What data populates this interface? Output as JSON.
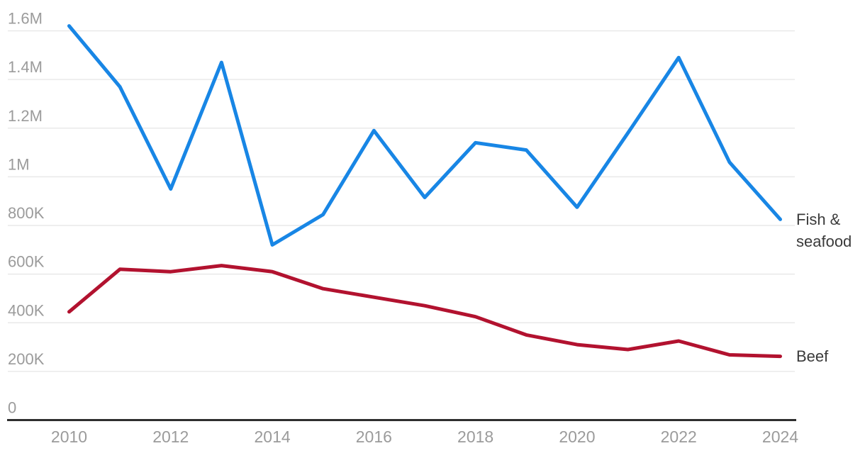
{
  "chart_data": {
    "type": "line",
    "title": "",
    "xlabel": "",
    "ylabel": "",
    "grid": true,
    "legend_position": "end-of-line-labels",
    "x": [
      2010,
      2011,
      2012,
      2013,
      2014,
      2015,
      2016,
      2017,
      2018,
      2019,
      2020,
      2021,
      2022,
      2023,
      2024
    ],
    "series": [
      {
        "name": "Fish & seafood",
        "color": "#1886e5",
        "values": [
          1620000,
          1370000,
          950000,
          1470000,
          720000,
          845000,
          1190000,
          915000,
          1140000,
          1110000,
          875000,
          1180000,
          1490000,
          1060000,
          825000
        ]
      },
      {
        "name": "Beef",
        "color": "#b2122f",
        "values": [
          445000,
          620000,
          610000,
          635000,
          610000,
          540000,
          505000,
          470000,
          425000,
          350000,
          310000,
          290000,
          325000,
          268000,
          262000
        ]
      }
    ],
    "x_axis": {
      "min": 2010,
      "max": 2024,
      "ticks": [
        {
          "v": 2010,
          "label": "2010"
        },
        {
          "v": 2012,
          "label": "2012"
        },
        {
          "v": 2014,
          "label": "2014"
        },
        {
          "v": 2016,
          "label": "2016"
        },
        {
          "v": 2018,
          "label": "2018"
        },
        {
          "v": 2020,
          "label": "2020"
        },
        {
          "v": 2022,
          "label": "2022"
        },
        {
          "v": 2024,
          "label": "2024"
        }
      ]
    },
    "y_axis": {
      "min": 0,
      "max": 1600000,
      "ticks": [
        {
          "v": 0,
          "label": "0"
        },
        {
          "v": 200000,
          "label": "200K"
        },
        {
          "v": 400000,
          "label": "400K"
        },
        {
          "v": 600000,
          "label": "600K"
        },
        {
          "v": 800000,
          "label": "800K"
        },
        {
          "v": 1000000,
          "label": "1M"
        },
        {
          "v": 1200000,
          "label": "1.2M"
        },
        {
          "v": 1400000,
          "label": "1.4M"
        },
        {
          "v": 1600000,
          "label": "1.6M"
        }
      ]
    },
    "colors": {
      "gridline": "#e9e9e9",
      "baseline": "#2e2e2e",
      "tick_label": "#9b9b9b",
      "series_label": "#3a3a3a",
      "background": "#ffffff"
    }
  }
}
